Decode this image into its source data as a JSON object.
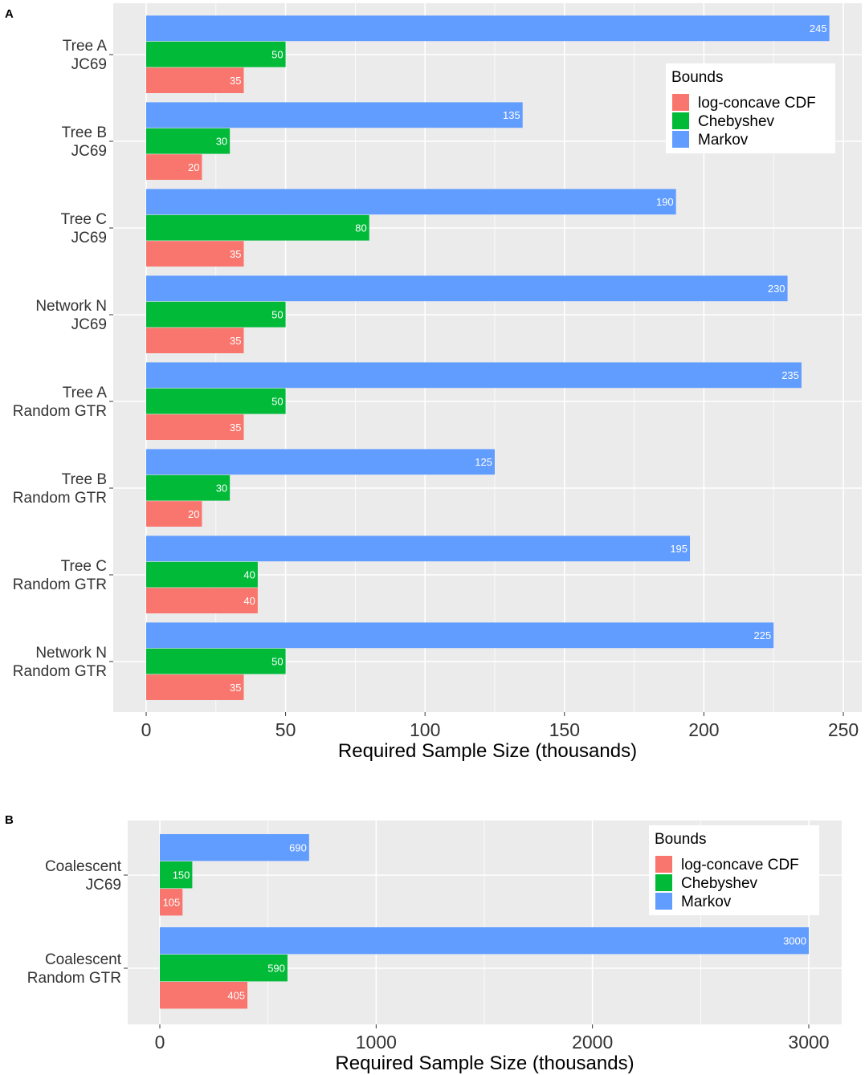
{
  "panels": {
    "a": {
      "letter": "A"
    },
    "b": {
      "letter": "B"
    }
  },
  "legend_title": "Bounds",
  "colors": {
    "log_concave": "#F8766D",
    "chebyshev": "#00BA38",
    "markov": "#619CFF",
    "panel_bg": "#EBEBEB",
    "grid": "#FFFFFF"
  },
  "chart_data": [
    {
      "type": "bar",
      "orientation": "horizontal",
      "panel": "A",
      "categories": [
        [
          "Tree A",
          "JC69"
        ],
        [
          "Tree B",
          "JC69"
        ],
        [
          "Tree C",
          "JC69"
        ],
        [
          "Network N",
          "JC69"
        ],
        [
          "Tree A",
          "Random GTR"
        ],
        [
          "Tree B",
          "Random GTR"
        ],
        [
          "Tree C",
          "Random GTR"
        ],
        [
          "Network N",
          "Random GTR"
        ]
      ],
      "series": [
        {
          "name": "Markov",
          "values": [
            245,
            135,
            190,
            230,
            235,
            125,
            195,
            225
          ]
        },
        {
          "name": "Chebyshev",
          "values": [
            50,
            30,
            80,
            50,
            50,
            30,
            40,
            50
          ]
        },
        {
          "name": "log-concave CDF",
          "values": [
            35,
            20,
            35,
            35,
            35,
            20,
            40,
            35
          ]
        }
      ],
      "legend_order": [
        "log-concave CDF",
        "Chebyshev",
        "Markov"
      ],
      "legend_position": "top-right",
      "xlabel": "Required Sample Size (thousands)",
      "xlim": [
        0,
        250
      ],
      "xticks": [
        0,
        50,
        100,
        150,
        200,
        250
      ],
      "grid": true
    },
    {
      "type": "bar",
      "orientation": "horizontal",
      "panel": "B",
      "categories": [
        [
          "Coalescent",
          "JC69"
        ],
        [
          "Coalescent",
          "Random GTR"
        ]
      ],
      "series": [
        {
          "name": "Markov",
          "values": [
            690,
            3000
          ]
        },
        {
          "name": "Chebyshev",
          "values": [
            150,
            590
          ]
        },
        {
          "name": "log-concave CDF",
          "values": [
            105,
            405
          ]
        }
      ],
      "legend_order": [
        "log-concave CDF",
        "Chebyshev",
        "Markov"
      ],
      "legend_position": "top-right",
      "xlabel": "Required Sample Size (thousands)",
      "xlim": [
        0,
        3000
      ],
      "xticks": [
        0,
        1000,
        2000,
        3000
      ],
      "grid": true
    }
  ]
}
